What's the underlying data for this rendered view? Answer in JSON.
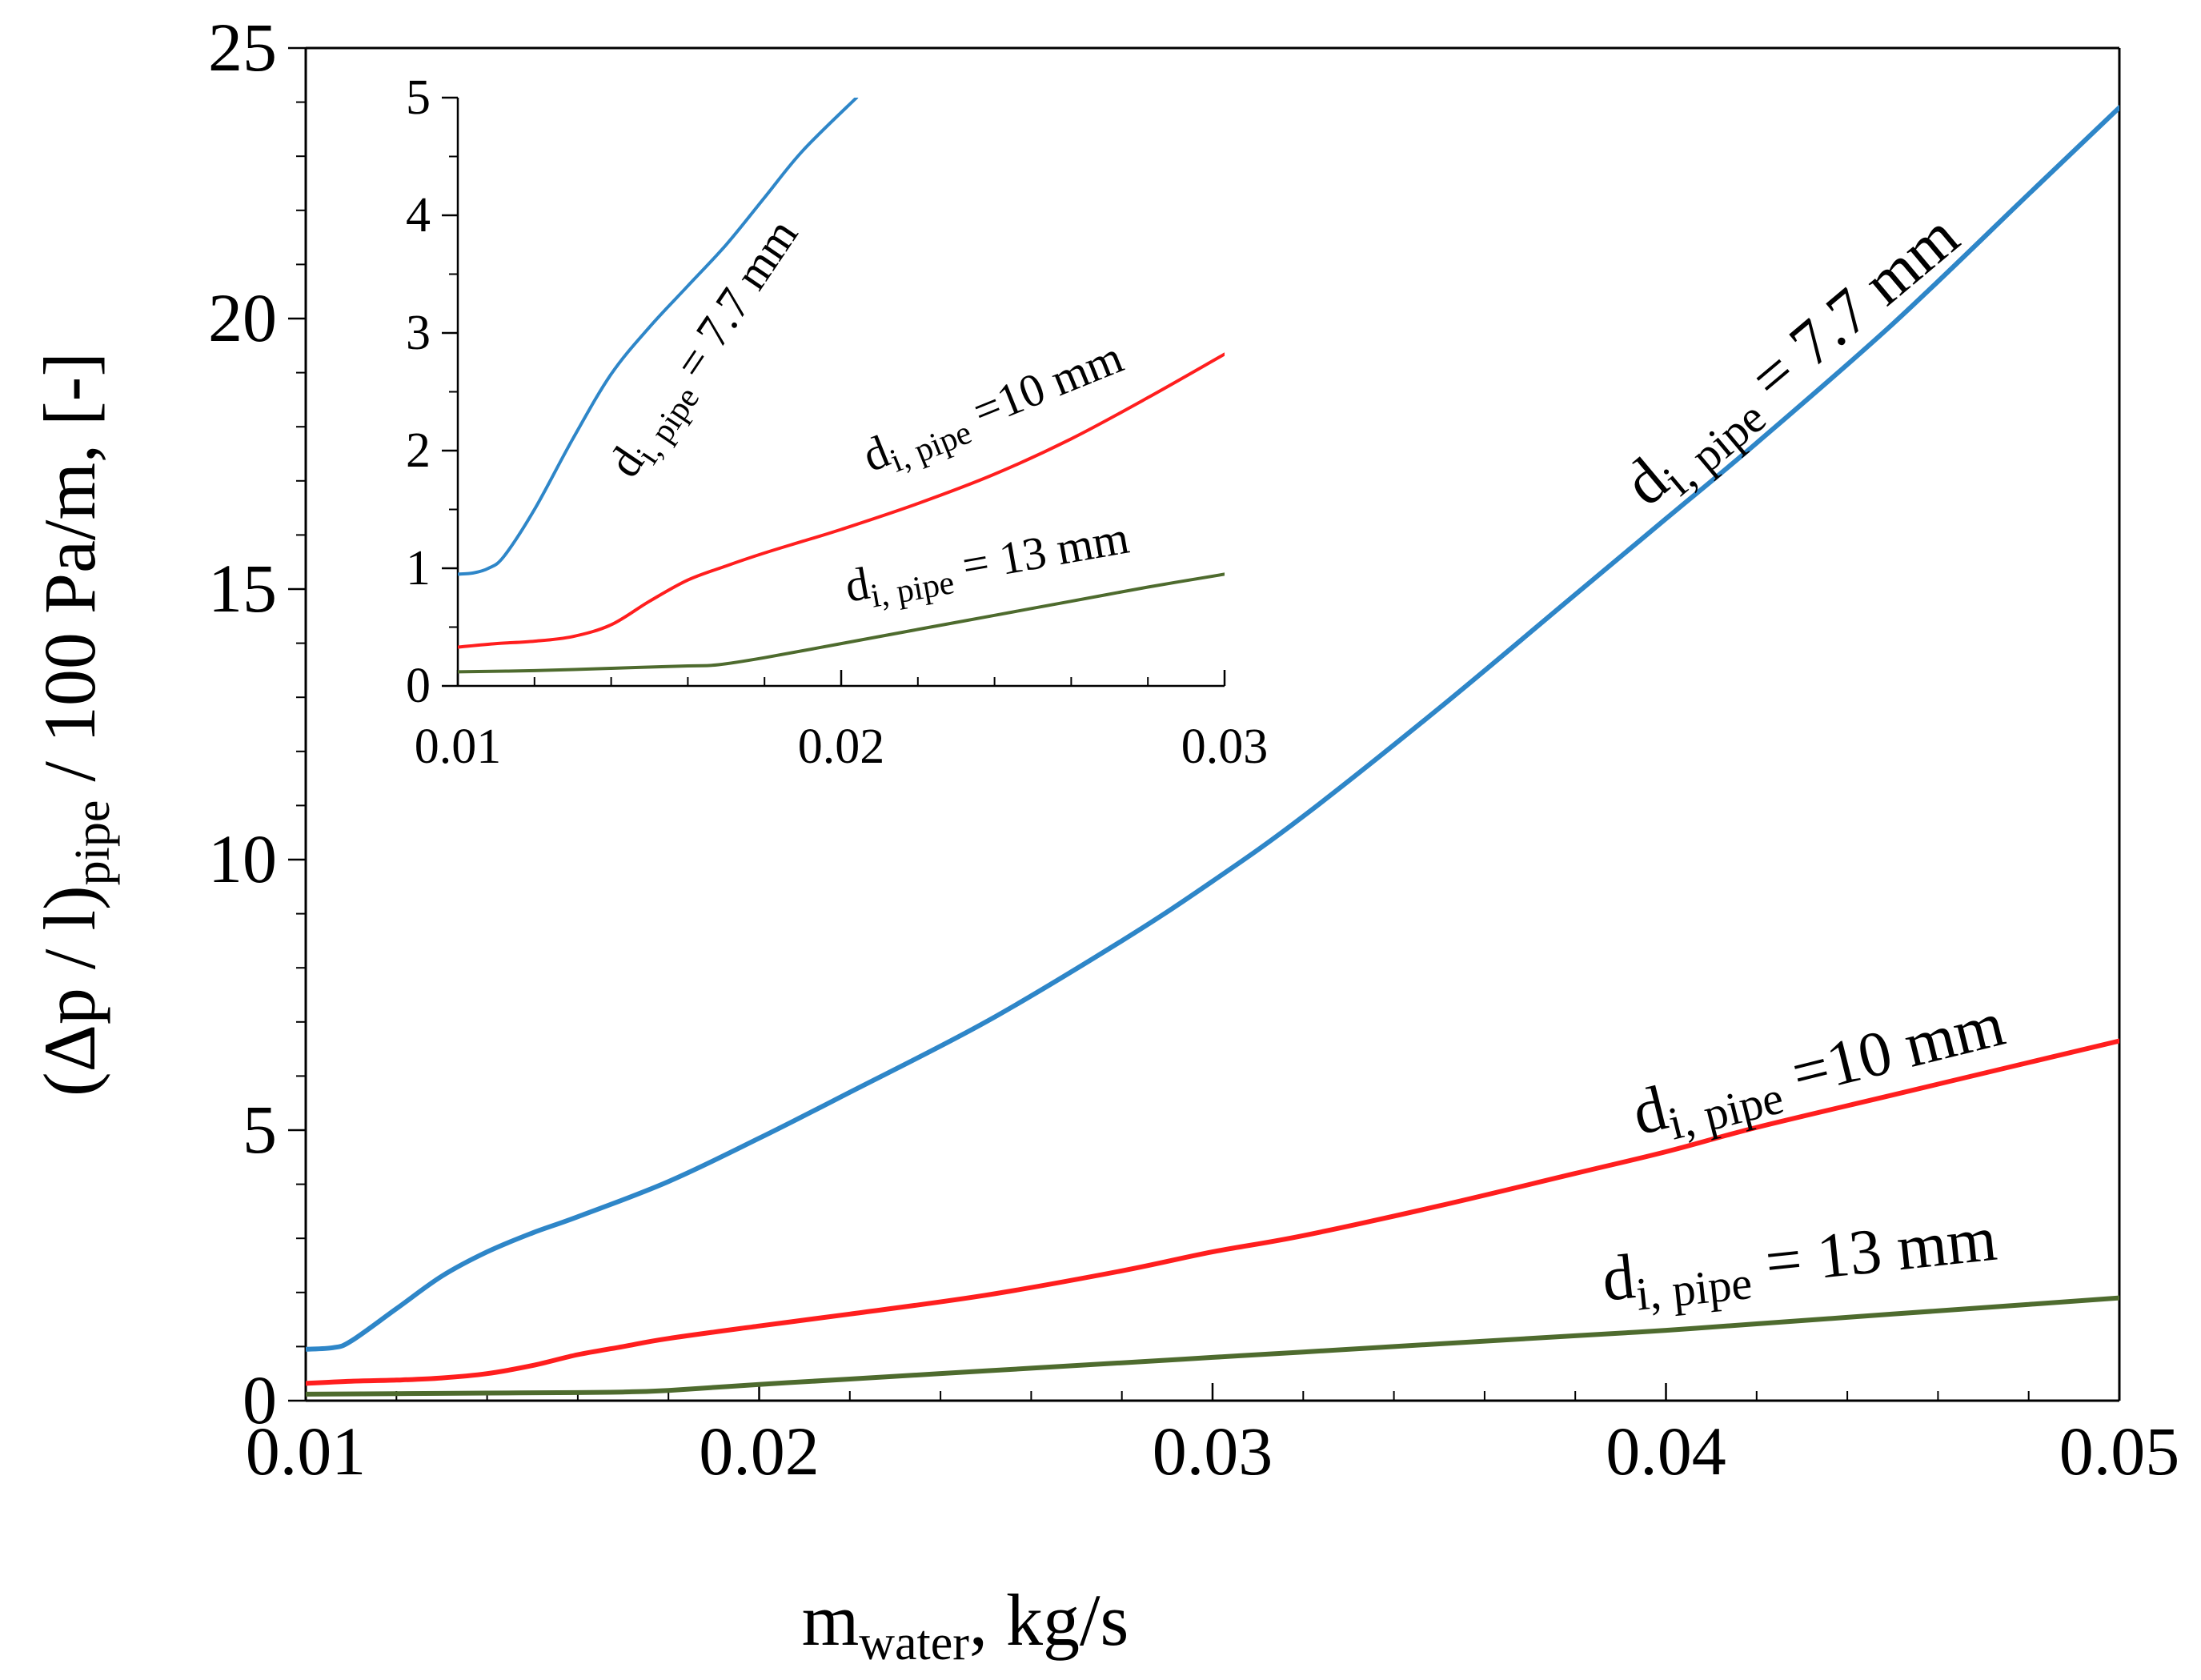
{
  "chart_data": [
    {
      "type": "line",
      "panel": "main",
      "xlabel": {
        "main": "m",
        "sub": "water",
        "rest": ", kg/s"
      },
      "ylabel": {
        "pre": "(Δp / l)",
        "sub": "pipe",
        "post": " / 100 Pa/m, [-]"
      },
      "xlim": [
        0.01,
        0.05
      ],
      "ylim": [
        0,
        25
      ],
      "x_ticks": [
        0.01,
        0.02,
        0.03,
        0.04,
        0.05
      ],
      "x_tick_labels": [
        "0.01",
        "0.02",
        "0.03",
        "0.04",
        "0.05"
      ],
      "y_ticks": [
        0,
        5,
        10,
        15,
        20,
        25
      ],
      "y_tick_labels": [
        "0",
        "5",
        "10",
        "15",
        "20",
        "25"
      ],
      "grid": false,
      "series": [
        {
          "name": "7.7 mm",
          "label": {
            "d": "d",
            "sub": "i, pipe",
            "text": " = 7.7 mm"
          },
          "color": "#2E86C8",
          "x": [
            0.01,
            0.0106,
            0.011,
            0.012,
            0.013,
            0.014,
            0.015,
            0.016,
            0.018,
            0.02,
            0.022,
            0.025,
            0.028,
            0.03,
            0.032,
            0.035,
            0.038,
            0.04,
            0.042,
            0.045,
            0.048,
            0.05
          ],
          "y": [
            0.95,
            0.98,
            1.1,
            1.7,
            2.3,
            2.75,
            3.1,
            3.4,
            4.05,
            4.85,
            5.7,
            7.0,
            8.5,
            9.6,
            10.8,
            12.8,
            14.9,
            16.3,
            17.7,
            19.9,
            22.3,
            23.9
          ]
        },
        {
          "name": "10 mm",
          "label": {
            "d": "d",
            "sub": "i, pipe",
            "text": " =10 mm"
          },
          "color": "#FF1E1E",
          "x": [
            0.01,
            0.011,
            0.012,
            0.013,
            0.014,
            0.015,
            0.016,
            0.017,
            0.018,
            0.02,
            0.022,
            0.025,
            0.028,
            0.03,
            0.032,
            0.035,
            0.038,
            0.04,
            0.042,
            0.045,
            0.048,
            0.05
          ],
          "y": [
            0.32,
            0.36,
            0.38,
            0.42,
            0.5,
            0.65,
            0.85,
            1.0,
            1.15,
            1.38,
            1.6,
            1.95,
            2.4,
            2.75,
            3.05,
            3.6,
            4.2,
            4.6,
            5.05,
            5.65,
            6.25,
            6.65
          ]
        },
        {
          "name": "13 mm",
          "label": {
            "d": "d",
            "sub": "i, pipe",
            "text": " = 13 mm"
          },
          "color": "#4E6B2E",
          "x": [
            0.01,
            0.012,
            0.014,
            0.016,
            0.017,
            0.018,
            0.02,
            0.022,
            0.025,
            0.028,
            0.03,
            0.032,
            0.035,
            0.038,
            0.04,
            0.042,
            0.045,
            0.048,
            0.05
          ],
          "y": [
            0.12,
            0.13,
            0.14,
            0.15,
            0.16,
            0.19,
            0.3,
            0.4,
            0.55,
            0.7,
            0.8,
            0.9,
            1.05,
            1.2,
            1.3,
            1.42,
            1.6,
            1.78,
            1.9
          ]
        }
      ]
    },
    {
      "type": "line",
      "panel": "inset",
      "xlim": [
        0.01,
        0.03
      ],
      "ylim": [
        0,
        5
      ],
      "x_ticks": [
        0.01,
        0.02,
        0.03
      ],
      "x_tick_labels": [
        "0.01",
        "0.02",
        "0.03"
      ],
      "y_ticks": [
        0,
        1,
        2,
        3,
        4,
        5
      ],
      "y_tick_labels": [
        "0",
        "1",
        "2",
        "3",
        "4",
        "5"
      ],
      "grid": false,
      "series": [
        {
          "name": "7.7 mm",
          "label": {
            "d": "d",
            "sub": "i, pipe",
            "text": " = 7.7 mm"
          },
          "color": "#2E86C8",
          "x": [
            0.01,
            0.0104,
            0.0108,
            0.0112,
            0.012,
            0.013,
            0.014,
            0.015,
            0.016,
            0.017,
            0.018,
            0.019,
            0.0204
          ],
          "y": [
            0.95,
            0.96,
            1.0,
            1.1,
            1.5,
            2.1,
            2.65,
            3.05,
            3.4,
            3.75,
            4.15,
            4.55,
            5.0
          ]
        },
        {
          "name": "10 mm",
          "label": {
            "d": "d",
            "sub": "i, pipe",
            "text": " =10 mm"
          },
          "color": "#FF1E1E",
          "x": [
            0.01,
            0.011,
            0.012,
            0.013,
            0.014,
            0.015,
            0.016,
            0.017,
            0.018,
            0.019,
            0.02,
            0.022,
            0.024,
            0.026,
            0.028,
            0.03
          ],
          "y": [
            0.33,
            0.36,
            0.38,
            0.42,
            0.52,
            0.72,
            0.9,
            1.02,
            1.13,
            1.23,
            1.33,
            1.55,
            1.8,
            2.1,
            2.45,
            2.82
          ]
        },
        {
          "name": "13 mm",
          "label": {
            "d": "d",
            "sub": "i, pipe",
            "text": " = 13 mm"
          },
          "color": "#4E6B2E",
          "x": [
            0.01,
            0.012,
            0.014,
            0.016,
            0.0168,
            0.018,
            0.02,
            0.022,
            0.024,
            0.026,
            0.028,
            0.03
          ],
          "y": [
            0.12,
            0.13,
            0.15,
            0.17,
            0.18,
            0.24,
            0.36,
            0.48,
            0.6,
            0.72,
            0.84,
            0.95
          ]
        }
      ]
    }
  ]
}
